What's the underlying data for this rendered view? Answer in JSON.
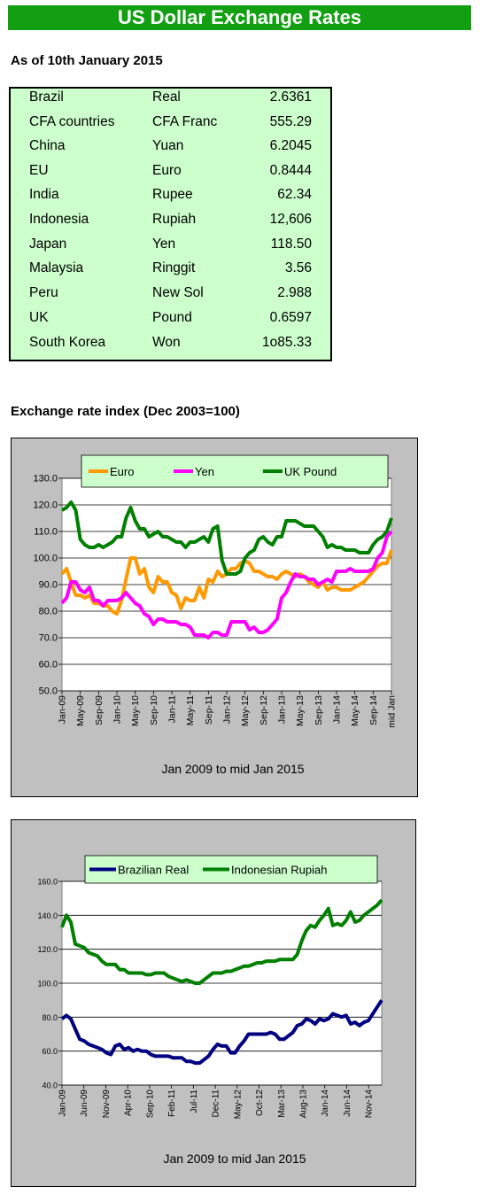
{
  "header": {
    "title": "US Dollar Exchange Rates",
    "as_of": "As of 10th January 2015"
  },
  "rates": [
    {
      "country": "Brazil",
      "currency": "Real",
      "value": "2.6361"
    },
    {
      "country": "CFA countries",
      "currency": "CFA Franc",
      "value": "555.29"
    },
    {
      "country": "China",
      "currency": "Yuan",
      "value": "6.2045"
    },
    {
      "country": "EU",
      "currency": "Euro",
      "value": "0.8444"
    },
    {
      "country": "India",
      "currency": "Rupee",
      "value": "62.34"
    },
    {
      "country": "Indonesia",
      "currency": "Rupiah",
      "value": "12,606"
    },
    {
      "country": "Japan",
      "currency": "Yen",
      "value": "118.50"
    },
    {
      "country": "Malaysia",
      "currency": "Ringgit",
      "value": "3.56"
    },
    {
      "country": "Peru",
      "currency": "New Sol",
      "value": "2.988"
    },
    {
      "country": "UK",
      "currency": "Pound",
      "value": "0.6597"
    },
    {
      "country": "South Korea",
      "currency": "Won",
      "value": "1o85.33"
    }
  ],
  "index_heading": "Exchange rate index (Dec 2003=100)",
  "colors": {
    "banner": "#12a012",
    "table_bg": "#ccffcc",
    "legend_bg": "#ccffcc",
    "euro": "#ff9900",
    "yen": "#ff00ff",
    "pound": "#008000",
    "real": "#000080",
    "rupiah": "#008000",
    "panel_bg": "#c0c0c0"
  },
  "chart_data": [
    {
      "type": "line",
      "caption": "Jan 2009 to mid Jan 2015",
      "ylim": [
        50,
        130
      ],
      "yticks": [
        "50.0",
        "60.0",
        "70.0",
        "80.0",
        "90.0",
        "100.0",
        "110.0",
        "120.0",
        "130.0"
      ],
      "xticks": [
        "Jan-09",
        "May-09",
        "Sep-09",
        "Jan-10",
        "May-10",
        "Sep-10",
        "Jan-11",
        "May-11",
        "Sep-11",
        "Jan-12",
        "May-12",
        "Sep-12",
        "Jan-13",
        "May-13",
        "Sep-13",
        "Jan-14",
        "May-14",
        "Sep-14",
        "mid Jan"
      ],
      "legend_position": "top",
      "series": [
        {
          "name": "Euro",
          "color": "#ff9900",
          "x": [
            0,
            1,
            2,
            3,
            4,
            5,
            6,
            7,
            8,
            9,
            10,
            11,
            12,
            13,
            14,
            15,
            16,
            17,
            18,
            19,
            20,
            21,
            22,
            23,
            24,
            25,
            26,
            27,
            28,
            29,
            30,
            31,
            32,
            33,
            34,
            35,
            36,
            37,
            38,
            39,
            40,
            41,
            42,
            43,
            44,
            45,
            46,
            47,
            48,
            49,
            50,
            51,
            52,
            53,
            54,
            55,
            56,
            57,
            58,
            59,
            60,
            61,
            62,
            63,
            64,
            65,
            66,
            67,
            68,
            69,
            70,
            71,
            72
          ],
          "values": [
            94,
            96,
            91,
            86,
            86,
            85,
            86,
            83,
            83,
            82,
            82,
            80,
            79,
            84,
            92,
            100,
            100,
            94,
            96,
            89,
            87,
            93,
            91,
            91,
            87,
            86,
            81,
            85,
            84,
            84,
            89,
            85,
            92,
            91,
            95,
            93,
            94,
            96,
            96,
            98,
            99,
            98,
            95,
            95,
            94,
            93,
            93,
            92,
            94,
            95,
            94,
            93,
            94,
            93,
            91,
            90,
            89,
            91,
            88,
            89,
            89,
            88,
            88,
            88,
            89,
            90,
            91,
            93,
            95,
            97,
            98,
            98,
            103
          ]
        },
        {
          "name": "Yen",
          "color": "#ff00ff",
          "x": [
            0,
            1,
            2,
            3,
            4,
            5,
            6,
            7,
            8,
            9,
            10,
            11,
            12,
            13,
            14,
            15,
            16,
            17,
            18,
            19,
            20,
            21,
            22,
            23,
            24,
            25,
            26,
            27,
            28,
            29,
            30,
            31,
            32,
            33,
            34,
            35,
            36,
            37,
            38,
            39,
            40,
            41,
            42,
            43,
            44,
            45,
            46,
            47,
            48,
            49,
            50,
            51,
            52,
            53,
            54,
            55,
            56,
            57,
            58,
            59,
            60,
            61,
            62,
            63,
            64,
            65,
            66,
            67,
            68,
            69,
            70,
            71,
            72
          ],
          "values": [
            83,
            85,
            91,
            91,
            88,
            87,
            89,
            84,
            84,
            82,
            84,
            84,
            84,
            85,
            87,
            85,
            83,
            82,
            79,
            78,
            75,
            77,
            77,
            76,
            76,
            76,
            75,
            75,
            74,
            71,
            71,
            71,
            70,
            72,
            72,
            71,
            71,
            76,
            76,
            76,
            76,
            73,
            74,
            72,
            72,
            73,
            75,
            77,
            85,
            87,
            91,
            94,
            93,
            93,
            92,
            92,
            90,
            91,
            92,
            91,
            95,
            95,
            95,
            96,
            95,
            95,
            95,
            95,
            96,
            100,
            102,
            108,
            110
          ]
        },
        {
          "name": "UK Pound",
          "color": "#008000",
          "x": [
            0,
            1,
            2,
            3,
            4,
            5,
            6,
            7,
            8,
            9,
            10,
            11,
            12,
            13,
            14,
            15,
            16,
            17,
            18,
            19,
            20,
            21,
            22,
            23,
            24,
            25,
            26,
            27,
            28,
            29,
            30,
            31,
            32,
            33,
            34,
            35,
            36,
            37,
            38,
            39,
            40,
            41,
            42,
            43,
            44,
            45,
            46,
            47,
            48,
            49,
            50,
            51,
            52,
            53,
            54,
            55,
            56,
            57,
            58,
            59,
            60,
            61,
            62,
            63,
            64,
            65,
            66,
            67,
            68,
            69,
            70,
            71,
            72
          ],
          "values": [
            118,
            119,
            121,
            118,
            107,
            105,
            104,
            104,
            105,
            104,
            105,
            106,
            108,
            108,
            115,
            119,
            114,
            111,
            111,
            108,
            109,
            110,
            108,
            108,
            107,
            106,
            106,
            104,
            106,
            106,
            107,
            108,
            106,
            111,
            112,
            99,
            94,
            94,
            94,
            95,
            100,
            102,
            103,
            107,
            108,
            106,
            105,
            108,
            108,
            114,
            114,
            114,
            113,
            112,
            112,
            112,
            110,
            108,
            104,
            105,
            104,
            104,
            103,
            103,
            103,
            102,
            102,
            102,
            105,
            107,
            108,
            110,
            115
          ]
        }
      ]
    },
    {
      "type": "line",
      "caption": "Jan 2009 to mid Jan 2015",
      "ylim": [
        40,
        160
      ],
      "yticks": [
        "40.0",
        "60.0",
        "80.0",
        "100.0",
        "120.0",
        "140.0",
        "160.0"
      ],
      "xticks": [
        "Jan-09",
        "Jun-09",
        "Nov-09",
        "Apr-10",
        "Sep-10",
        "Feb-11",
        "Jul-11",
        "Dec-11",
        "May-12",
        "Oct-12",
        "Mar-13",
        "Aug-13",
        "Jan-14",
        "Jun-14",
        "Nov-14"
      ],
      "legend_position": "top",
      "series": [
        {
          "name": "Brazilian Real",
          "color": "#000080",
          "x": [
            0,
            1,
            2,
            3,
            4,
            5,
            6,
            7,
            8,
            9,
            10,
            11,
            12,
            13,
            14,
            15,
            16,
            17,
            18,
            19,
            20,
            21,
            22,
            23,
            24,
            25,
            26,
            27,
            28,
            29,
            30,
            31,
            32,
            33,
            34,
            35,
            36,
            37,
            38,
            39,
            40,
            41,
            42,
            43,
            44,
            45,
            46,
            47,
            48,
            49,
            50,
            51,
            52,
            53,
            54,
            55,
            56,
            57,
            58,
            59,
            60,
            61,
            62,
            63,
            64,
            65,
            66,
            67,
            68,
            69,
            70,
            71,
            72
          ],
          "values": [
            79,
            81,
            79,
            73,
            67,
            66,
            64,
            63,
            62,
            61,
            59,
            58,
            63,
            64,
            61,
            62,
            60,
            61,
            60,
            60,
            58,
            57,
            57,
            57,
            57,
            56,
            56,
            56,
            54,
            54,
            53,
            53,
            55,
            57,
            61,
            64,
            63,
            63,
            59,
            59,
            63,
            66,
            70,
            70,
            70,
            70,
            70,
            71,
            70,
            67,
            67,
            69,
            71,
            75,
            76,
            79,
            78,
            76,
            79,
            78,
            79,
            82,
            81,
            80,
            81,
            76,
            77,
            75,
            77,
            78,
            82,
            86,
            90
          ]
        },
        {
          "name": "Indonesian Rupiah",
          "color": "#008000",
          "x": [
            0,
            1,
            2,
            3,
            4,
            5,
            6,
            7,
            8,
            9,
            10,
            11,
            12,
            13,
            14,
            15,
            16,
            17,
            18,
            19,
            20,
            21,
            22,
            23,
            24,
            25,
            26,
            27,
            28,
            29,
            30,
            31,
            32,
            33,
            34,
            35,
            36,
            37,
            38,
            39,
            40,
            41,
            42,
            43,
            44,
            45,
            46,
            47,
            48,
            49,
            50,
            51,
            52,
            53,
            54,
            55,
            56,
            57,
            58,
            59,
            60,
            61,
            62,
            63,
            64,
            65,
            66,
            67,
            68,
            69,
            70,
            71,
            72
          ],
          "values": [
            133,
            140,
            136,
            123,
            122,
            121,
            118,
            117,
            116,
            113,
            111,
            111,
            111,
            108,
            108,
            106,
            106,
            106,
            106,
            105,
            105,
            106,
            106,
            106,
            104,
            103,
            102,
            101,
            102,
            101,
            100,
            100,
            102,
            104,
            106,
            106,
            106,
            107,
            107,
            108,
            109,
            110,
            110,
            111,
            112,
            112,
            113,
            113,
            113,
            114,
            114,
            114,
            114,
            117,
            125,
            131,
            134,
            133,
            137,
            140,
            144,
            134,
            135,
            134,
            137,
            142,
            136,
            137,
            140,
            142,
            144,
            146,
            149
          ]
        }
      ]
    }
  ]
}
